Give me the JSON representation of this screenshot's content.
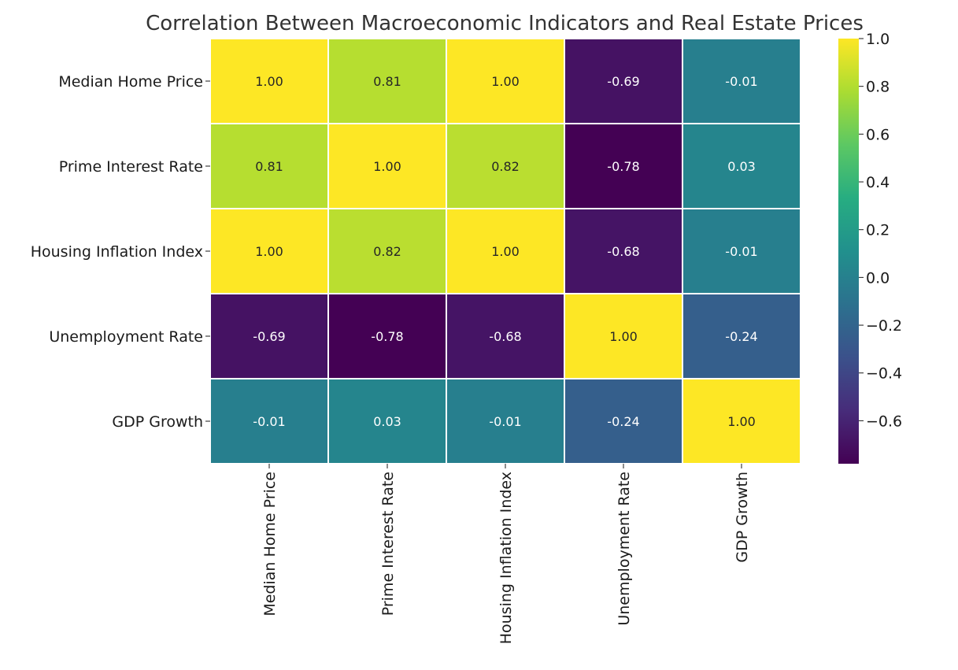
{
  "chart_data": {
    "type": "heatmap",
    "title": "Correlation Between Macroeconomic Indicators and Real Estate Prices",
    "rows": [
      "Median Home Price",
      "Prime Interest Rate",
      "Housing Inflation Index",
      "Unemployment Rate",
      "GDP Growth"
    ],
    "columns": [
      "Median Home Price",
      "Prime Interest Rate",
      "Housing Inflation Index",
      "Unemployment Rate",
      "GDP Growth"
    ],
    "values": [
      [
        1.0,
        0.81,
        1.0,
        -0.69,
        -0.01
      ],
      [
        0.81,
        1.0,
        0.82,
        -0.78,
        0.03
      ],
      [
        1.0,
        0.82,
        1.0,
        -0.68,
        -0.01
      ],
      [
        -0.69,
        -0.78,
        -0.68,
        1.0,
        -0.24
      ],
      [
        -0.01,
        0.03,
        -0.01,
        -0.24,
        1.0
      ]
    ],
    "value_format": "0.00",
    "colormap": "viridis",
    "vmin": -0.78,
    "vmax": 1.0,
    "colorbar_ticks": [
      "1.0",
      "0.8",
      "0.6",
      "0.4",
      "0.2",
      "0.0",
      "−0.2",
      "−0.4",
      "−0.6"
    ],
    "colorbar_tick_values": [
      1.0,
      0.8,
      0.6,
      0.4,
      0.2,
      0.0,
      -0.2,
      -0.4,
      -0.6
    ],
    "cell_border_color": "#ffffff",
    "annotation_colors": {
      "light_bg": "#262626",
      "dark_bg": "#ffffff"
    }
  }
}
